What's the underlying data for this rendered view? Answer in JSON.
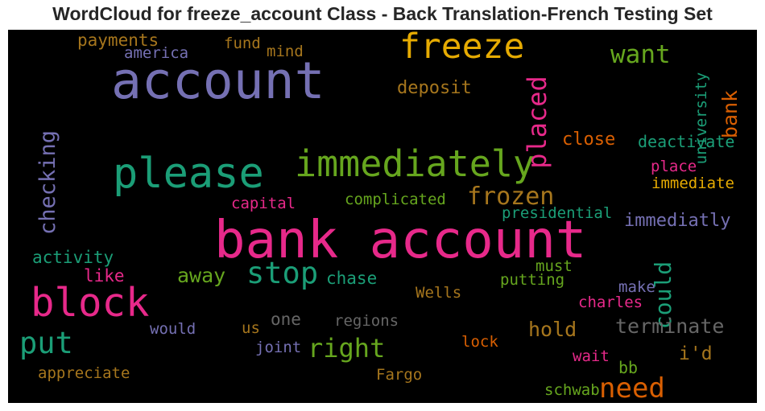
{
  "chart_data": {
    "type": "wordcloud",
    "title": "WordCloud for freeze_account Class - Back Translation-French Testing Set",
    "background": "#000000",
    "colors": {
      "purple": "#7570b3",
      "teal": "#1b9e77",
      "pink": "#e7298a",
      "orange": "#d95f02",
      "green": "#66a61e",
      "gold": "#e6ab02",
      "brown": "#a6761d",
      "grey": "#666666"
    },
    "words": [
      {
        "text": "bank account",
        "weight": 1.0,
        "color": "pink"
      },
      {
        "text": "account",
        "weight": 0.98,
        "color": "purple"
      },
      {
        "text": "please",
        "weight": 0.82,
        "color": "teal"
      },
      {
        "text": "block",
        "weight": 0.78,
        "color": "pink"
      },
      {
        "text": "immediately",
        "weight": 0.7,
        "color": "green"
      },
      {
        "text": "freeze",
        "weight": 0.67,
        "color": "gold"
      },
      {
        "text": "stop",
        "weight": 0.57,
        "color": "teal"
      },
      {
        "text": "put",
        "weight": 0.57,
        "color": "teal"
      },
      {
        "text": "need",
        "weight": 0.52,
        "color": "orange"
      },
      {
        "text": "placed",
        "weight": 0.48,
        "color": "pink",
        "vertical": true
      },
      {
        "text": "right",
        "weight": 0.48,
        "color": "green"
      },
      {
        "text": "want",
        "weight": 0.47,
        "color": "green"
      },
      {
        "text": "frozen",
        "weight": 0.44,
        "color": "brown"
      },
      {
        "text": "could",
        "weight": 0.4,
        "color": "teal",
        "vertical": true
      },
      {
        "text": "checking",
        "weight": 0.38,
        "color": "purple",
        "vertical": true
      },
      {
        "text": "bank",
        "weight": 0.35,
        "color": "orange",
        "vertical": true
      },
      {
        "text": "terminate",
        "weight": 0.35,
        "color": "grey"
      },
      {
        "text": "away",
        "weight": 0.35,
        "color": "green"
      },
      {
        "text": "hold",
        "weight": 0.35,
        "color": "brown"
      },
      {
        "text": "i'd",
        "weight": 0.3,
        "color": "brown"
      },
      {
        "text": "deposit",
        "weight": 0.28,
        "color": "brown"
      },
      {
        "text": "close",
        "weight": 0.27,
        "color": "orange"
      },
      {
        "text": "immediatly",
        "weight": 0.27,
        "color": "purple"
      },
      {
        "text": "activity",
        "weight": 0.25,
        "color": "teal"
      },
      {
        "text": "chase",
        "weight": 0.25,
        "color": "teal"
      },
      {
        "text": "like",
        "weight": 0.25,
        "color": "pink"
      },
      {
        "text": "one",
        "weight": 0.25,
        "color": "grey"
      },
      {
        "text": "payments",
        "weight": 0.25,
        "color": "brown"
      },
      {
        "text": "bb",
        "weight": 0.24,
        "color": "green"
      },
      {
        "text": "deactivate",
        "weight": 0.22,
        "color": "teal"
      },
      {
        "text": "complicated",
        "weight": 0.21,
        "color": "green"
      },
      {
        "text": "presidential",
        "weight": 0.21,
        "color": "teal"
      },
      {
        "text": "capital",
        "weight": 0.21,
        "color": "pink"
      },
      {
        "text": "place",
        "weight": 0.21,
        "color": "pink"
      },
      {
        "text": "immediate",
        "weight": 0.21,
        "color": "gold"
      },
      {
        "text": "putting",
        "weight": 0.21,
        "color": "green"
      },
      {
        "text": "make",
        "weight": 0.21,
        "color": "purple"
      },
      {
        "text": "charles",
        "weight": 0.21,
        "color": "pink"
      },
      {
        "text": "Wells",
        "weight": 0.21,
        "color": "brown"
      },
      {
        "text": "must",
        "weight": 0.21,
        "color": "green"
      },
      {
        "text": "would",
        "weight": 0.21,
        "color": "purple"
      },
      {
        "text": "us",
        "weight": 0.21,
        "color": "brown"
      },
      {
        "text": "regions",
        "weight": 0.21,
        "color": "grey"
      },
      {
        "text": "joint",
        "weight": 0.21,
        "color": "purple"
      },
      {
        "text": "lock",
        "weight": 0.21,
        "color": "orange"
      },
      {
        "text": "wait",
        "weight": 0.21,
        "color": "pink"
      },
      {
        "text": "appreciate",
        "weight": 0.21,
        "color": "brown"
      },
      {
        "text": "Fargo",
        "weight": 0.21,
        "color": "brown"
      },
      {
        "text": "schwab",
        "weight": 0.21,
        "color": "green"
      },
      {
        "text": "university",
        "weight": 0.2,
        "color": "teal",
        "vertical": true
      },
      {
        "text": "america",
        "weight": 0.2,
        "color": "purple"
      },
      {
        "text": "fund",
        "weight": 0.2,
        "color": "brown"
      },
      {
        "text": "mind",
        "weight": 0.2,
        "color": "brown"
      }
    ]
  }
}
